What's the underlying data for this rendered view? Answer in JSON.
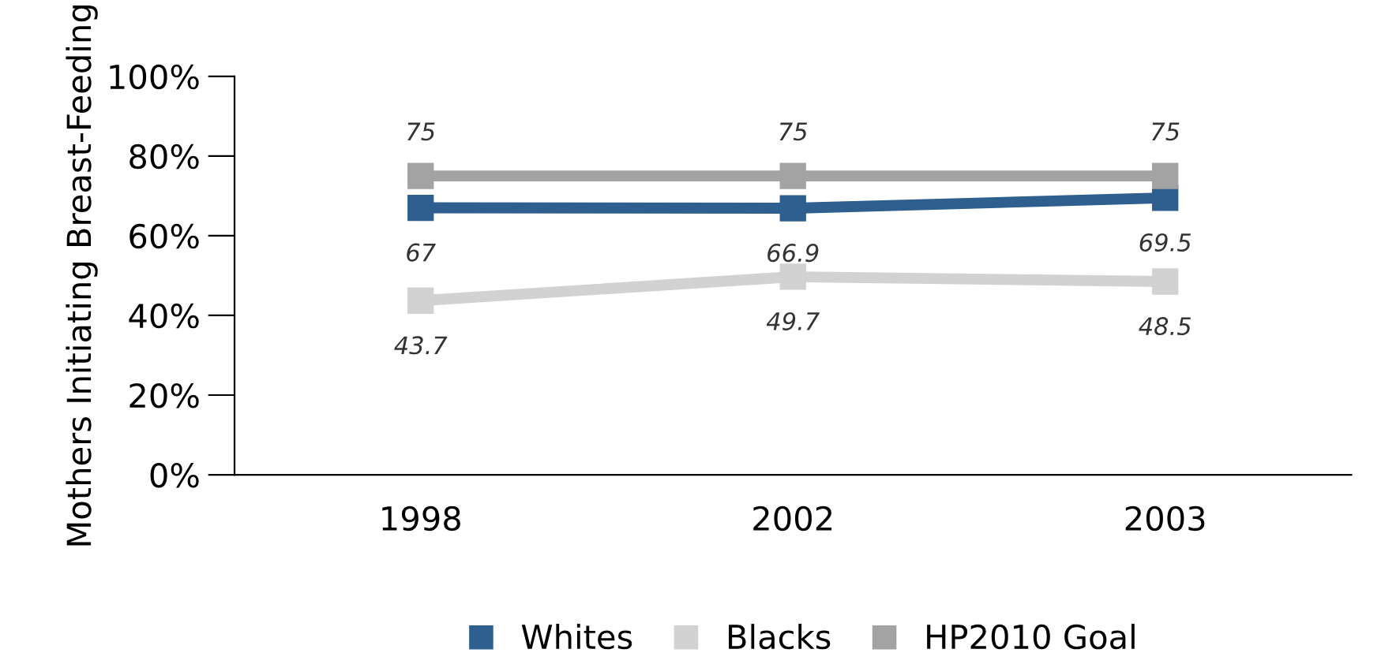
{
  "chart_data": {
    "type": "line",
    "ylabel": "Mothers Initiating Breast-Feeding",
    "categories": [
      "1998",
      "2002",
      "2003"
    ],
    "series": [
      {
        "name": "Whites",
        "color": "#2e5f8e",
        "values": [
          67,
          66.9,
          69.5
        ]
      },
      {
        "name": "Blacks",
        "color": "#d2d2d2",
        "values": [
          43.7,
          49.7,
          48.5
        ]
      },
      {
        "name": "HP2010 Goal",
        "color": "#a3a3a3",
        "values": [
          75,
          75,
          75
        ]
      }
    ],
    "ylim": [
      0,
      100
    ],
    "yticks": [
      {
        "value": 0,
        "label": "0%"
      },
      {
        "value": 20,
        "label": "20%"
      },
      {
        "value": 40,
        "label": "40%"
      },
      {
        "value": 60,
        "label": "60%"
      },
      {
        "value": 80,
        "label": "80%"
      },
      {
        "value": 100,
        "label": "100%"
      }
    ],
    "marker": "square",
    "line_style": "solid",
    "grid": false,
    "legend": "bottom",
    "data_labels": true
  }
}
